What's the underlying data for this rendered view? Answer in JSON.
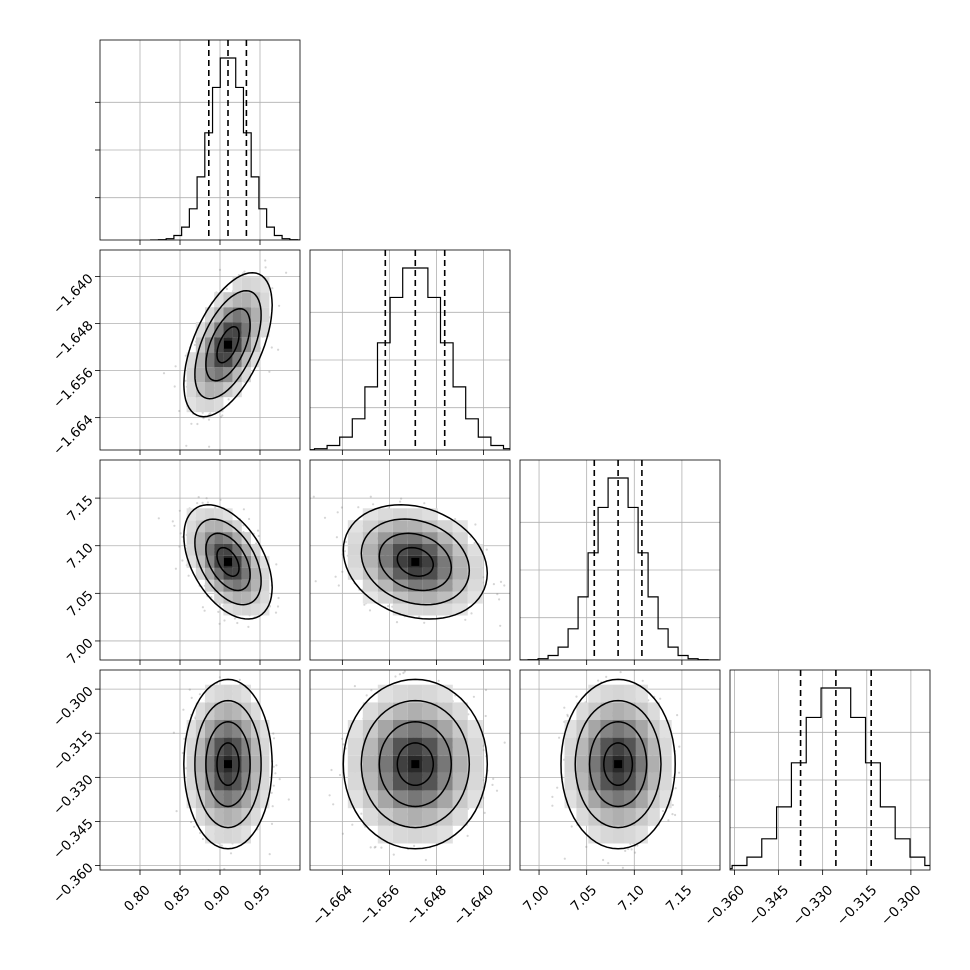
{
  "chart_data": {
    "type": "corner",
    "grid": true,
    "parameters": [
      {
        "index": 0,
        "range": [
          0.75,
          1.0
        ],
        "ticks": [
          0.8,
          0.85,
          0.9,
          0.95
        ],
        "tick_labels": [
          "0.80",
          "0.85",
          "0.90",
          "0.95"
        ],
        "quantiles": [
          0.886,
          0.91,
          0.933
        ],
        "center": 0.91,
        "sigma": 0.023
      },
      {
        "index": 1,
        "range": [
          -1.6695,
          -1.6355
        ],
        "ticks": [
          -1.664,
          -1.656,
          -1.648,
          -1.64
        ],
        "tick_labels": [
          "−1.664",
          "−1.656",
          "−1.648",
          "−1.640"
        ],
        "quantiles": [
          -1.6567,
          -1.6516,
          -1.6466
        ],
        "center": -1.6516,
        "sigma": 0.0051
      },
      {
        "index": 2,
        "range": [
          6.98,
          7.19
        ],
        "ticks": [
          7.0,
          7.05,
          7.1,
          7.15
        ],
        "tick_labels": [
          "7.00",
          "7.05",
          "7.10",
          "7.15"
        ],
        "quantiles": [
          7.058,
          7.083,
          7.108
        ],
        "center": 7.083,
        "sigma": 0.025
      },
      {
        "index": 3,
        "range": [
          -0.3615,
          -0.2935
        ],
        "ticks": [
          -0.36,
          -0.345,
          -0.33,
          -0.315,
          -0.3
        ],
        "tick_labels": [
          "−0.360",
          "−0.345",
          "−0.330",
          "−0.315",
          "−0.300"
        ],
        "quantiles": [
          -0.3375,
          -0.3255,
          -0.3135
        ],
        "center": -0.3255,
        "sigma": 0.012
      }
    ],
    "correlations": [
      {
        "pair": [
          0,
          1
        ],
        "rho": 0.55
      },
      {
        "pair": [
          0,
          2
        ],
        "rho": -0.45
      },
      {
        "pair": [
          1,
          2
        ],
        "rho": -0.2
      },
      {
        "pair": [
          0,
          3
        ],
        "rho": 0.0
      },
      {
        "pair": [
          1,
          3
        ],
        "rho": 0.0
      },
      {
        "pair": [
          2,
          3
        ],
        "rho": 0.0
      }
    ],
    "histogram_bins": 20,
    "contour_levels": 3
  }
}
